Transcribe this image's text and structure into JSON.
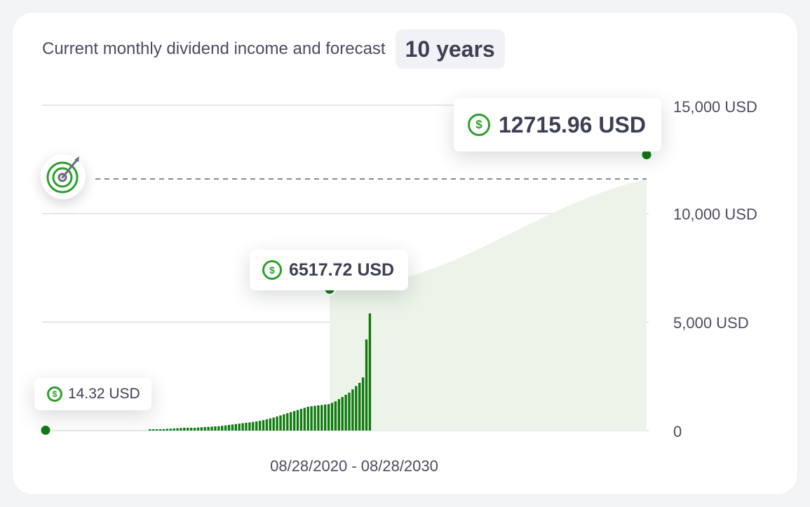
{
  "header": {
    "title": "Current monthly dividend income and forecast",
    "period": "10 years"
  },
  "colors": {
    "bar": "#117a11",
    "forecast_fill": "#ecf4e9",
    "accent": "#2ca02c",
    "grid": "#dcdde3",
    "target_line": "#6b6e80"
  },
  "chart_data": {
    "type": "bar",
    "x_range_label": "08/28/2020 - 08/28/2030",
    "ylim": [
      0,
      15000
    ],
    "y_ticks": [
      "15,000 USD",
      "10,000 USD",
      "5,000 USD",
      "0"
    ],
    "grid": true,
    "start_value": 14.32,
    "current_value": 6517.72,
    "target_value": 11600,
    "forecast_end_value": 12715.96,
    "annotations": {
      "start": "14.32 USD",
      "current": "6517.72 USD",
      "forecast": "12715.96 USD"
    },
    "monthly_bar_values": [
      0,
      0,
      0,
      0,
      0,
      0,
      0,
      0,
      0,
      0,
      0,
      0,
      0,
      0,
      0,
      0,
      0,
      0,
      0,
      0,
      0,
      0,
      0,
      0,
      0,
      0,
      0,
      0,
      0,
      30,
      40,
      50,
      60,
      70,
      80,
      90,
      100,
      110,
      120,
      130,
      130,
      130,
      130,
      140,
      150,
      160,
      170,
      180,
      190,
      200,
      220,
      240,
      260,
      280,
      300,
      320,
      340,
      360,
      380,
      400,
      420,
      450,
      480,
      520,
      560,
      600,
      650,
      700,
      750,
      800,
      850,
      900,
      950,
      1000,
      1050,
      1100,
      1120,
      1140,
      1160,
      1180,
      1200,
      1220,
      1280,
      1350,
      1450,
      1550,
      1650,
      1750,
      1900,
      2050,
      2200,
      2450,
      4200,
      5400
    ]
  }
}
